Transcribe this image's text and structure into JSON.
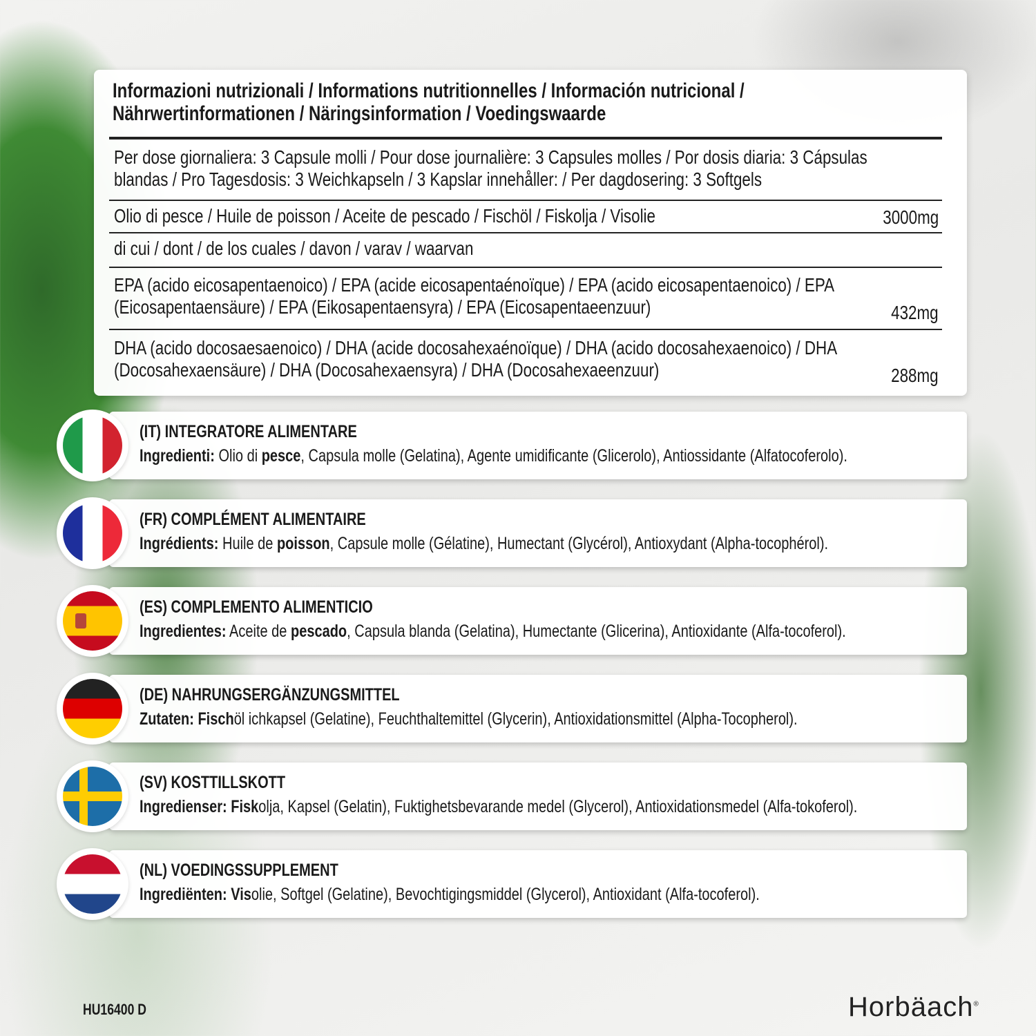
{
  "nutrition": {
    "title_line1": "Informazioni nutrizionali / Informations nutritionnelles / Información nutricional /",
    "title_line2": "Nährwertinformationen / Näringsinformation / Voedingswaarde",
    "dose_line1": "Per dose giornaliera: 3 Capsule molli / Pour dose journalière: 3 Capsules molles / Por dosis diaria: 3 Cápsulas",
    "dose_line2": "blandas / Pro Tagesdosis: 3 Weichkapseln / 3 Kapslar innehåller: / Per dagdosering: 3 Softgels",
    "fish_oil_label": "Olio di pesce / Huile de poisson / Aceite de pescado / Fischöl / Fiskolja / Visolie",
    "fish_oil_value": "3000mg",
    "of_which": "di cui / dont / de los cuales / davon / varav / waarvan",
    "epa_line1": "EPA (acido eicosapentaenoico) / EPA (acide eicosapentaénoïque) / EPA (acido eicosapentaenoico) / EPA",
    "epa_line2": "(Eicosapentaensäure) / EPA (Eikosapentaensyra) / EPA (Eicosapentaeenzuur)",
    "epa_value": "432mg",
    "dha_line1": "DHA (acido docosaesaenoico) / DHA (acide docosahexaénoïque) / DHA (acido docosahexaenoico) / DHA",
    "dha_line2": "(Docosahexaensäure) / DHA (Docosahexaensyra) / DHA (Docosahexaeenzuur)",
    "dha_value": "288mg"
  },
  "languages": [
    {
      "code": "it",
      "flag": "italy-flag-icon",
      "title": "(IT) INTEGRATORE ALIMENTARE",
      "parts": [
        {
          "t": "Ingredienti:",
          "b": true
        },
        {
          "t": " Olio di ",
          "b": false
        },
        {
          "t": "pesce",
          "b": true
        },
        {
          "t": ", Capsula molle (Gelatina), Agente umidificante (Glicerolo), Antiossidante (Alfatocoferolo).",
          "b": false
        }
      ]
    },
    {
      "code": "fr",
      "flag": "france-flag-icon",
      "title": "(FR) COMPLÉMENT ALIMENTAIRE",
      "parts": [
        {
          "t": "Ingrédients:",
          "b": true
        },
        {
          "t": " Huile de ",
          "b": false
        },
        {
          "t": "poisson",
          "b": true
        },
        {
          "t": ", Capsule molle (Gélatine), Humectant (Glycérol), Antioxydant (Alpha-tocophérol).",
          "b": false
        }
      ]
    },
    {
      "code": "es",
      "flag": "spain-flag-icon",
      "title": "(ES) COMPLEMENTO ALIMENTICIO",
      "parts": [
        {
          "t": "Ingredientes:",
          "b": true
        },
        {
          "t": " Aceite de ",
          "b": false
        },
        {
          "t": "pescado",
          "b": true
        },
        {
          "t": ", Capsula blanda (Gelatina), Humectante (Glicerina), Antioxidante (Alfa-tocoferol).",
          "b": false
        }
      ]
    },
    {
      "code": "de",
      "flag": "germany-flag-icon",
      "title": "(DE) NAHRUNGSERGÄNZUNGSMITTEL",
      "parts": [
        {
          "t": "Zutaten:",
          "b": true
        },
        {
          "t": " Fisch",
          "b": true
        },
        {
          "t": "öl ichkapsel (Gelatine), Feuchthaltemittel (Glycerin), Antioxidationsmittel (Alpha-Tocopherol).",
          "b": false
        }
      ]
    },
    {
      "code": "sv",
      "flag": "sweden-flag-icon",
      "title": "(SV) KOSTTILLSKOTT",
      "parts": [
        {
          "t": "Ingredienser:",
          "b": true
        },
        {
          "t": " Fisk",
          "b": true
        },
        {
          "t": "olja, Kapsel (Gelatin), Fuktighetsbevarande medel (Glycerol), Antioxidationsmedel (Alfa-tokoferol).",
          "b": false
        }
      ]
    },
    {
      "code": "nl",
      "flag": "netherlands-flag-icon",
      "title": "(NL) VOEDINGSSUPPLEMENT",
      "parts": [
        {
          "t": "Ingrediënten:",
          "b": true
        },
        {
          "t": " Vis",
          "b": true
        },
        {
          "t": "olie, Softgel (Gelatine), Bevochtigingsmiddel (Glycerol), Antioxidant (Alfa-tocoferol).",
          "b": false
        }
      ]
    }
  ],
  "footer": {
    "product_code": "HU16400 D",
    "brand": "Horbäach",
    "registered": "®"
  }
}
